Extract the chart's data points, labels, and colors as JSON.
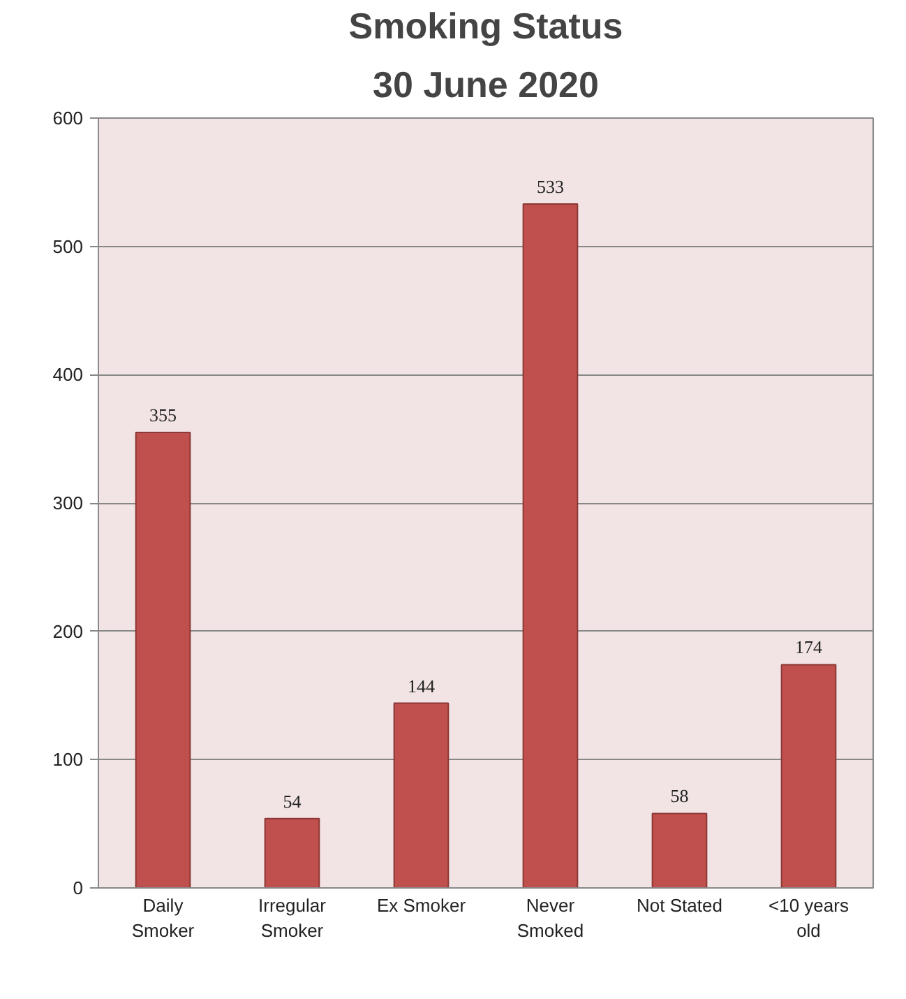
{
  "chart_data": {
    "type": "bar",
    "title": "Smoking Status",
    "subtitle": "30 June 2020",
    "categories": [
      "Daily Smoker",
      "Irregular Smoker",
      "Ex Smoker",
      "Never Smoked",
      "Not Stated",
      "<10 years old"
    ],
    "values": [
      355,
      54,
      144,
      533,
      58,
      174
    ],
    "color": "#c0504d",
    "ylim": [
      0,
      600
    ],
    "yticks": [
      0,
      100,
      200,
      300,
      400,
      500,
      600
    ],
    "grid": "y",
    "data_labels": true
  }
}
